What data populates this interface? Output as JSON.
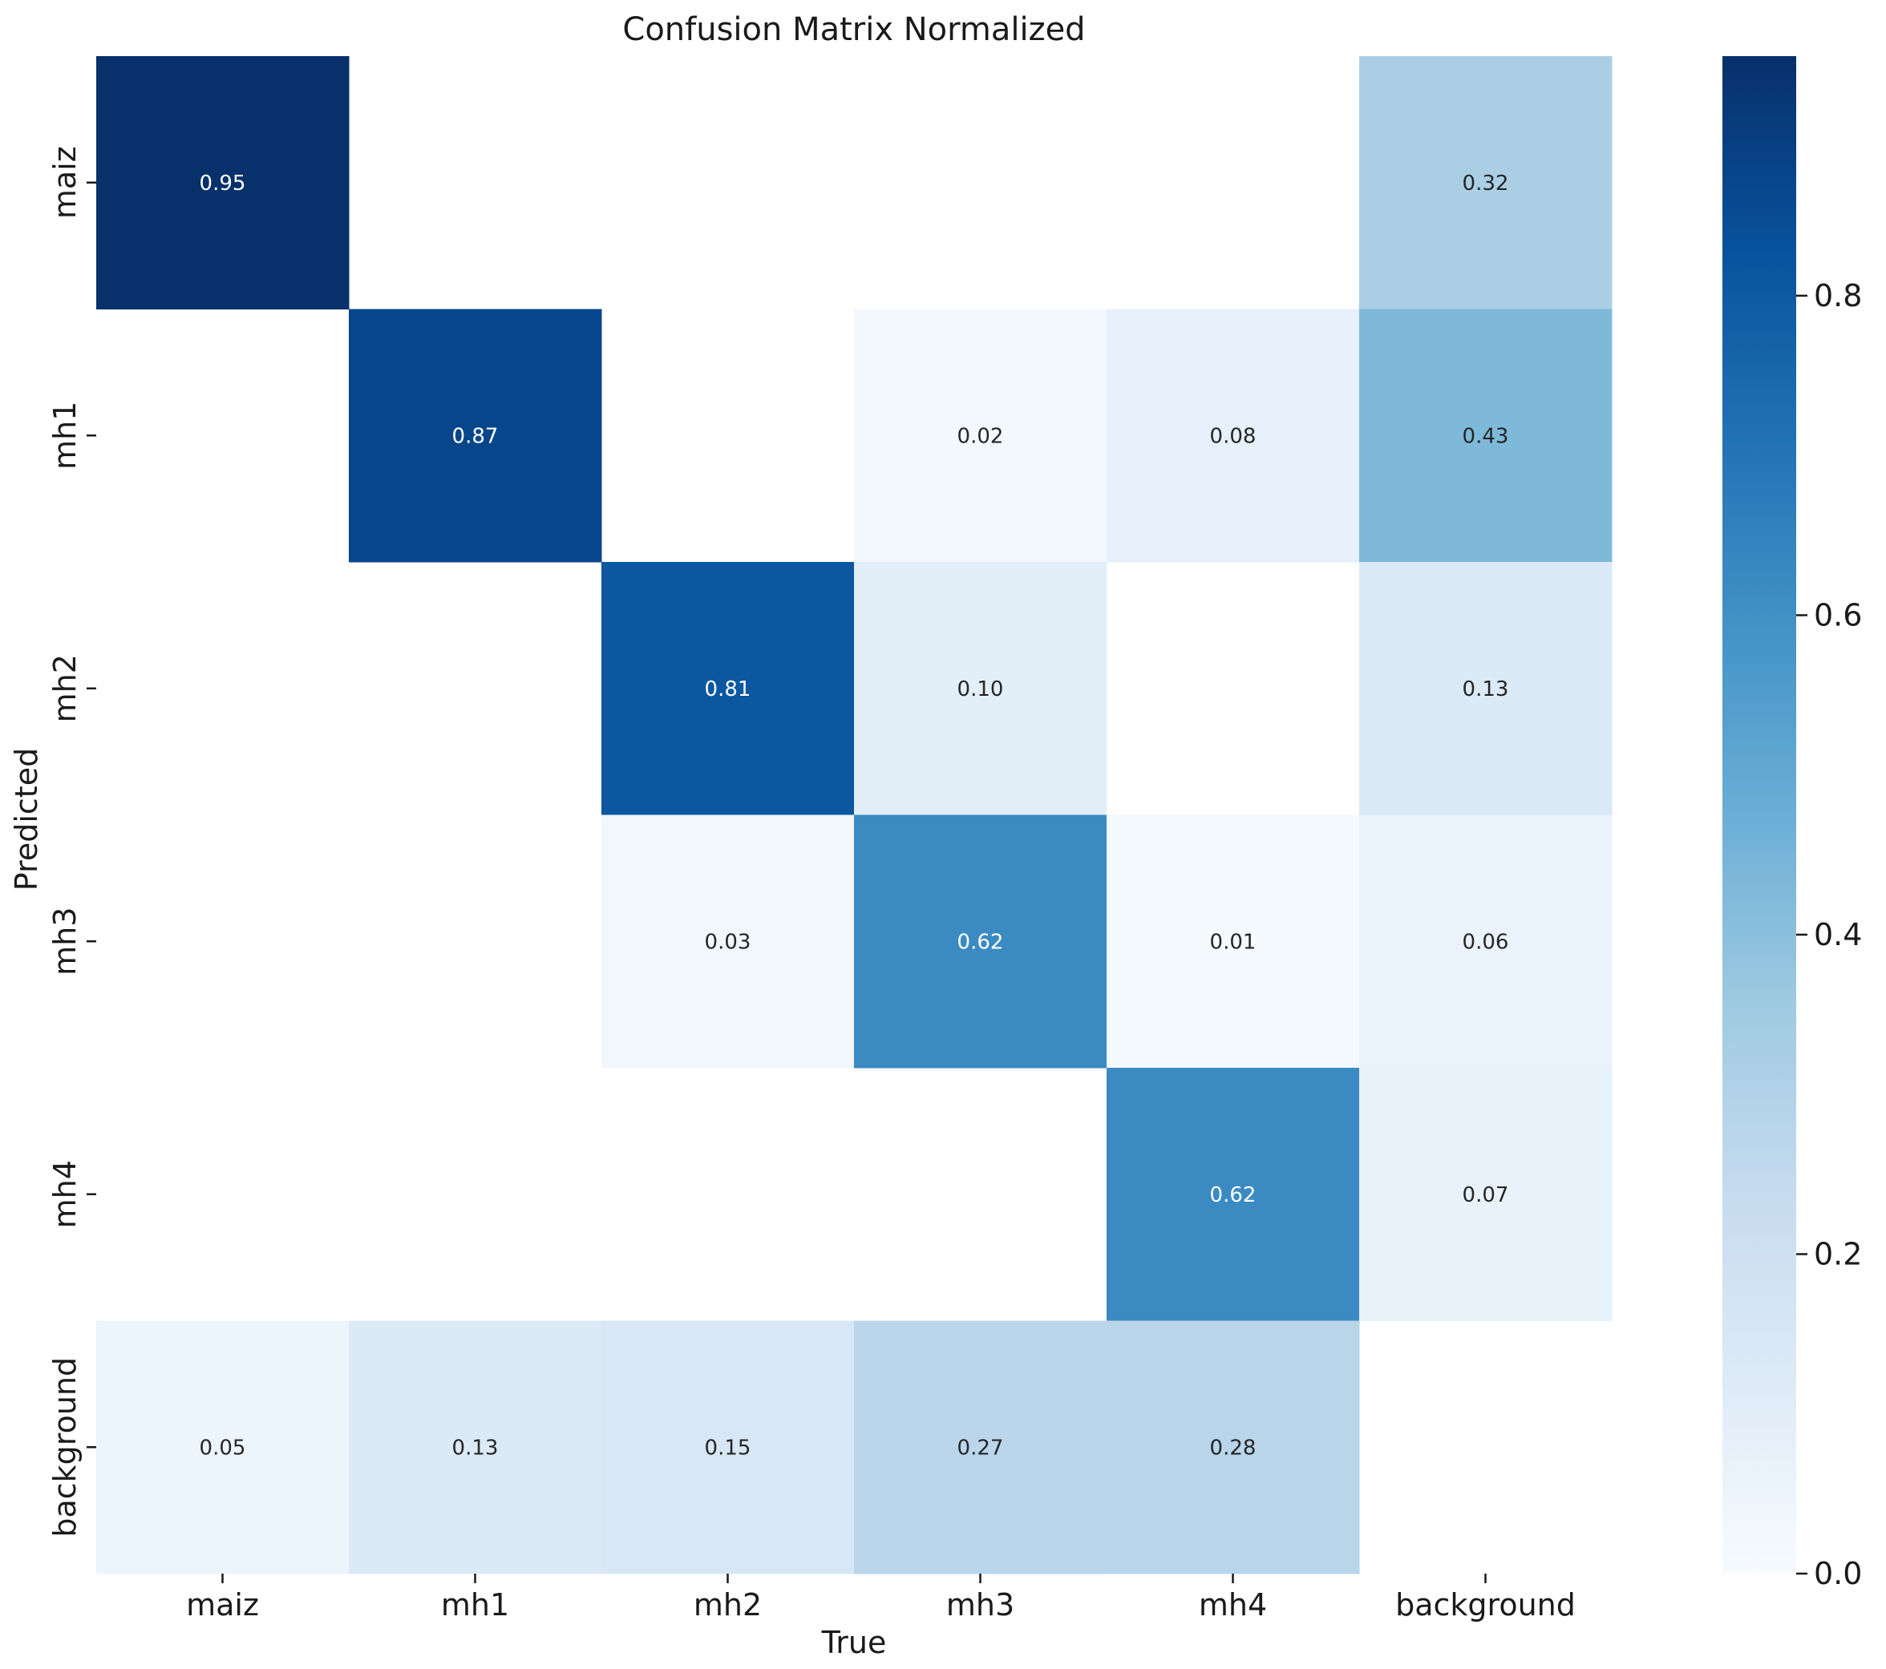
{
  "chart_data": {
    "type": "heatmap",
    "title": "Confusion Matrix Normalized",
    "xlabel": "True",
    "ylabel": "Predicted",
    "x_categories": [
      "maiz",
      "mh1",
      "mh2",
      "mh3",
      "mh4",
      "background"
    ],
    "y_categories": [
      "maiz",
      "mh1",
      "mh2",
      "mh3",
      "mh4",
      "background"
    ],
    "values": [
      [
        0.95,
        null,
        null,
        null,
        null,
        0.32
      ],
      [
        null,
        0.87,
        null,
        0.02,
        0.08,
        0.43
      ],
      [
        null,
        null,
        0.81,
        0.1,
        null,
        0.13
      ],
      [
        null,
        null,
        0.03,
        0.62,
        0.01,
        0.06
      ],
      [
        null,
        null,
        null,
        null,
        0.62,
        0.07
      ],
      [
        0.05,
        0.13,
        0.15,
        0.27,
        0.28,
        null
      ]
    ],
    "value_format": "0.00",
    "colormap": "Blues",
    "colorbar": {
      "range": [
        0.0,
        0.95
      ],
      "ticks": [
        0.0,
        0.2,
        0.4,
        0.6,
        0.8
      ],
      "tick_labels": [
        "0.0",
        "0.2",
        "0.4",
        "0.6",
        "0.8"
      ]
    },
    "colors": {
      "low": "#f7fbff",
      "high": "#08306b",
      "text_dark": "#262626",
      "text_light": "#ffffff"
    }
  }
}
